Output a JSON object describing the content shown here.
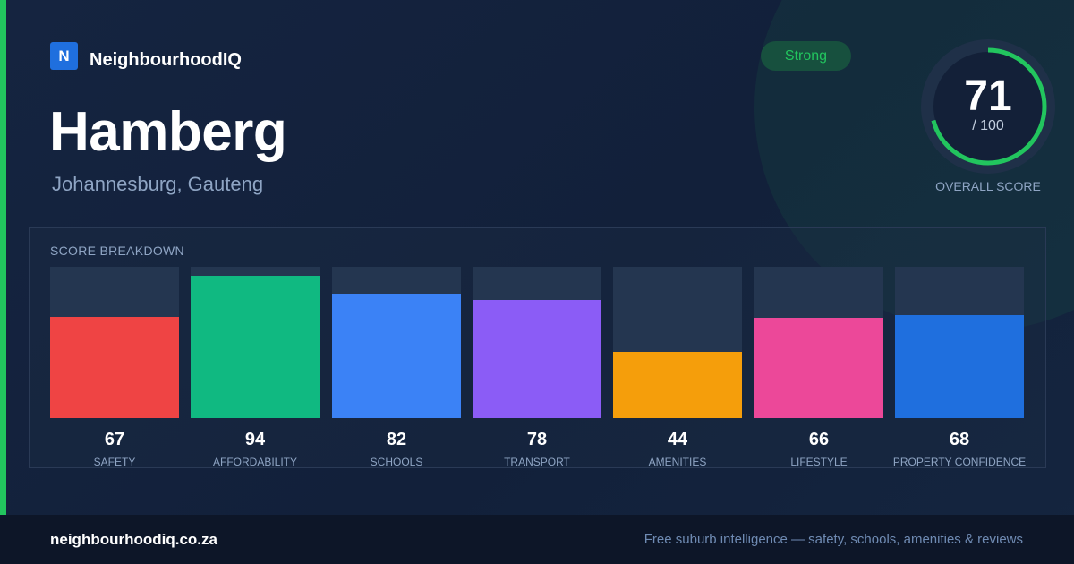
{
  "brand": {
    "logo_letter": "N",
    "name": "NeighbourhoodIQ"
  },
  "suburb": {
    "name": "Hamberg",
    "location": "Johannesburg, Gauteng"
  },
  "rating_badge": "Strong",
  "overall": {
    "score": "71",
    "max": "/ 100",
    "label": "OVERALL SCORE",
    "fraction": 0.71,
    "ring_color": "#22c55e"
  },
  "breakdown": {
    "title": "SCORE BREAKDOWN"
  },
  "chart_data": {
    "type": "bar",
    "categories": [
      "SAFETY",
      "AFFORDABILITY",
      "SCHOOLS",
      "TRANSPORT",
      "AMENITIES",
      "LIFESTYLE",
      "PROPERTY CONFIDENCE"
    ],
    "values": [
      67,
      94,
      82,
      78,
      44,
      66,
      68
    ],
    "colors": [
      "#ef4444",
      "#10b981",
      "#3b82f6",
      "#8b5cf6",
      "#f59e0b",
      "#ec4899",
      "#1f6fde"
    ],
    "ylim": [
      0,
      100
    ],
    "title": "SCORE BREAKDOWN",
    "xlabel": "",
    "ylabel": "",
    "grid": false
  },
  "footer": {
    "url": "neighbourhoodiq.co.za",
    "tagline": "Free suburb intelligence — safety, schools, amenities & reviews"
  }
}
